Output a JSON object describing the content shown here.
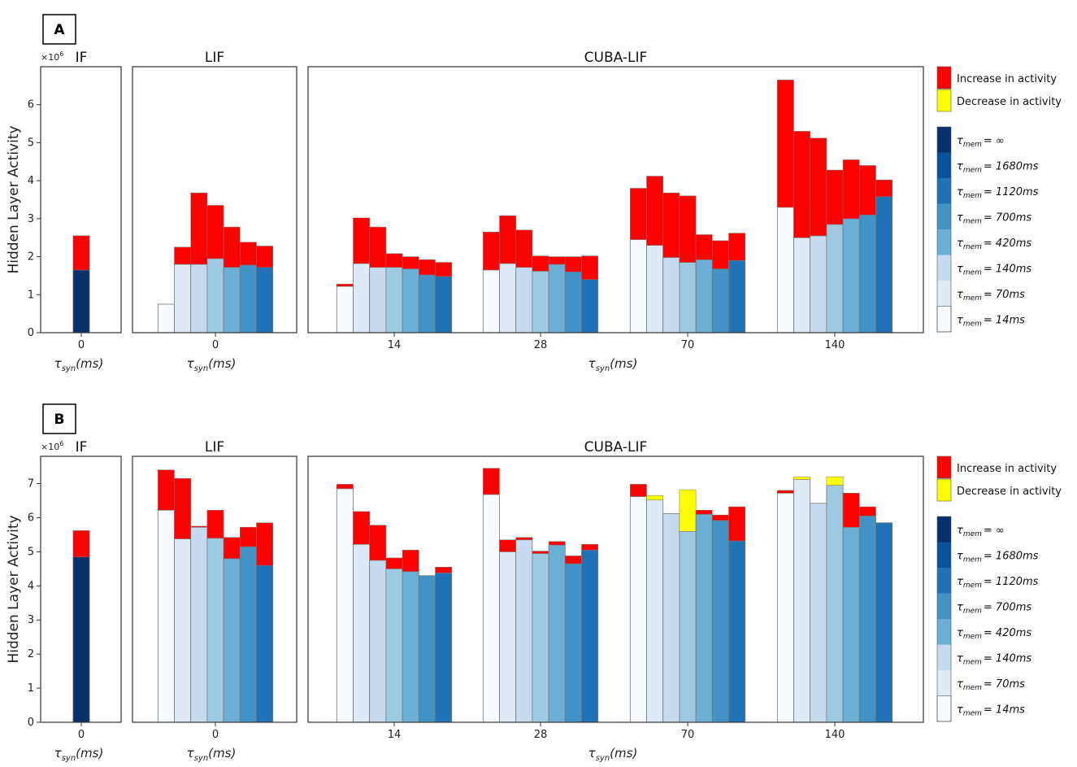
{
  "chart_data": [
    {
      "panel": "A",
      "type": "bar",
      "subtype": "stacked-change",
      "ylabel": "Hidden Layer Activity",
      "y_scale_label": "×10",
      "y_scale_exponent": "6",
      "ylim": [
        0,
        7
      ],
      "yticks": [
        0,
        1,
        2,
        3,
        4,
        5,
        6
      ],
      "xlabel": "τsyn(ms)",
      "subplots": [
        {
          "title": "IF",
          "groups": [
            {
              "tick": "0",
              "bars": [
                {
                  "tau_mem_index": 7,
                  "base": 1.65,
                  "top": 2.55,
                  "change": "increase"
                }
              ]
            }
          ]
        },
        {
          "title": "LIF",
          "groups": [
            {
              "tick": "0",
              "bars": [
                {
                  "tau_mem_index": 0,
                  "base": 0.75,
                  "top": 0.75,
                  "change": "none"
                },
                {
                  "tau_mem_index": 1,
                  "base": 1.8,
                  "top": 2.25,
                  "change": "increase"
                },
                {
                  "tau_mem_index": 2,
                  "base": 1.8,
                  "top": 3.68,
                  "change": "increase"
                },
                {
                  "tau_mem_index": 3,
                  "base": 1.95,
                  "top": 3.35,
                  "change": "increase"
                },
                {
                  "tau_mem_index": 4,
                  "base": 1.72,
                  "top": 2.78,
                  "change": "increase"
                },
                {
                  "tau_mem_index": 5,
                  "base": 1.78,
                  "top": 2.38,
                  "change": "increase"
                },
                {
                  "tau_mem_index": 6,
                  "base": 1.72,
                  "top": 2.28,
                  "change": "increase"
                }
              ]
            }
          ]
        },
        {
          "title": "CUBA-LIF",
          "groups": [
            {
              "tick": "14",
              "bars": [
                {
                  "tau_mem_index": 0,
                  "base": 1.22,
                  "top": 1.28,
                  "change": "increase"
                },
                {
                  "tau_mem_index": 1,
                  "base": 1.82,
                  "top": 3.02,
                  "change": "increase"
                },
                {
                  "tau_mem_index": 2,
                  "base": 1.72,
                  "top": 2.78,
                  "change": "increase"
                },
                {
                  "tau_mem_index": 3,
                  "base": 1.72,
                  "top": 2.08,
                  "change": "increase"
                },
                {
                  "tau_mem_index": 4,
                  "base": 1.68,
                  "top": 2.0,
                  "change": "increase"
                },
                {
                  "tau_mem_index": 5,
                  "base": 1.52,
                  "top": 1.92,
                  "change": "increase"
                },
                {
                  "tau_mem_index": 6,
                  "base": 1.48,
                  "top": 1.85,
                  "change": "increase"
                }
              ]
            },
            {
              "tick": "28",
              "bars": [
                {
                  "tau_mem_index": 0,
                  "base": 1.65,
                  "top": 2.65,
                  "change": "increase"
                },
                {
                  "tau_mem_index": 1,
                  "base": 1.82,
                  "top": 3.08,
                  "change": "increase"
                },
                {
                  "tau_mem_index": 2,
                  "base": 1.72,
                  "top": 2.7,
                  "change": "increase"
                },
                {
                  "tau_mem_index": 3,
                  "base": 1.62,
                  "top": 2.02,
                  "change": "increase"
                },
                {
                  "tau_mem_index": 4,
                  "base": 1.8,
                  "top": 2.0,
                  "change": "increase"
                },
                {
                  "tau_mem_index": 5,
                  "base": 1.6,
                  "top": 2.0,
                  "change": "increase"
                },
                {
                  "tau_mem_index": 6,
                  "base": 1.4,
                  "top": 2.02,
                  "change": "increase"
                }
              ]
            },
            {
              "tick": "70",
              "bars": [
                {
                  "tau_mem_index": 0,
                  "base": 2.45,
                  "top": 3.8,
                  "change": "increase"
                },
                {
                  "tau_mem_index": 1,
                  "base": 2.3,
                  "top": 4.12,
                  "change": "increase"
                },
                {
                  "tau_mem_index": 2,
                  "base": 1.98,
                  "top": 3.68,
                  "change": "increase"
                },
                {
                  "tau_mem_index": 3,
                  "base": 1.85,
                  "top": 3.6,
                  "change": "increase"
                },
                {
                  "tau_mem_index": 4,
                  "base": 1.92,
                  "top": 2.58,
                  "change": "increase"
                },
                {
                  "tau_mem_index": 5,
                  "base": 1.68,
                  "top": 2.42,
                  "change": "increase"
                },
                {
                  "tau_mem_index": 6,
                  "base": 1.9,
                  "top": 2.62,
                  "change": "increase"
                }
              ]
            },
            {
              "tick": "140",
              "bars": [
                {
                  "tau_mem_index": 0,
                  "base": 3.3,
                  "top": 6.65,
                  "change": "increase"
                },
                {
                  "tau_mem_index": 1,
                  "base": 2.5,
                  "top": 5.3,
                  "change": "increase"
                },
                {
                  "tau_mem_index": 2,
                  "base": 2.55,
                  "top": 5.12,
                  "change": "increase"
                },
                {
                  "tau_mem_index": 3,
                  "base": 2.85,
                  "top": 4.28,
                  "change": "increase"
                },
                {
                  "tau_mem_index": 4,
                  "base": 3.0,
                  "top": 4.55,
                  "change": "increase"
                },
                {
                  "tau_mem_index": 5,
                  "base": 3.1,
                  "top": 4.4,
                  "change": "increase"
                },
                {
                  "tau_mem_index": 6,
                  "base": 3.58,
                  "top": 4.02,
                  "change": "increase"
                }
              ]
            }
          ]
        }
      ]
    },
    {
      "panel": "B",
      "type": "bar",
      "subtype": "stacked-change",
      "ylabel": "Hidden Layer Activity",
      "y_scale_label": "×10",
      "y_scale_exponent": "6",
      "ylim": [
        0,
        7.8
      ],
      "yticks": [
        0,
        1,
        2,
        3,
        4,
        5,
        6,
        7
      ],
      "xlabel": "τsyn(ms)",
      "subplots": [
        {
          "title": "IF",
          "groups": [
            {
              "tick": "0",
              "bars": [
                {
                  "tau_mem_index": 7,
                  "base": 4.85,
                  "top": 5.62,
                  "change": "increase"
                }
              ]
            }
          ]
        },
        {
          "title": "LIF",
          "groups": [
            {
              "tick": "0",
              "bars": [
                {
                  "tau_mem_index": 0,
                  "base": 6.22,
                  "top": 7.4,
                  "change": "increase"
                },
                {
                  "tau_mem_index": 1,
                  "base": 5.38,
                  "top": 7.15,
                  "change": "increase"
                },
                {
                  "tau_mem_index": 2,
                  "base": 5.72,
                  "top": 5.75,
                  "change": "increase"
                },
                {
                  "tau_mem_index": 3,
                  "base": 5.4,
                  "top": 6.22,
                  "change": "increase"
                },
                {
                  "tau_mem_index": 4,
                  "base": 4.8,
                  "top": 5.42,
                  "change": "increase"
                },
                {
                  "tau_mem_index": 5,
                  "base": 5.15,
                  "top": 5.72,
                  "change": "increase"
                },
                {
                  "tau_mem_index": 6,
                  "base": 4.6,
                  "top": 5.85,
                  "change": "increase"
                }
              ]
            }
          ]
        },
        {
          "title": "CUBA-LIF",
          "groups": [
            {
              "tick": "14",
              "bars": [
                {
                  "tau_mem_index": 0,
                  "base": 6.85,
                  "top": 6.98,
                  "change": "increase"
                },
                {
                  "tau_mem_index": 1,
                  "base": 5.22,
                  "top": 6.18,
                  "change": "increase"
                },
                {
                  "tau_mem_index": 2,
                  "base": 4.75,
                  "top": 5.78,
                  "change": "increase"
                },
                {
                  "tau_mem_index": 3,
                  "base": 4.5,
                  "top": 4.82,
                  "change": "increase"
                },
                {
                  "tau_mem_index": 4,
                  "base": 4.42,
                  "top": 5.05,
                  "change": "increase"
                },
                {
                  "tau_mem_index": 5,
                  "base": 4.3,
                  "top": 4.3,
                  "change": "none"
                },
                {
                  "tau_mem_index": 6,
                  "base": 4.38,
                  "top": 4.55,
                  "change": "increase"
                }
              ]
            },
            {
              "tick": "28",
              "bars": [
                {
                  "tau_mem_index": 0,
                  "base": 6.68,
                  "top": 7.45,
                  "change": "increase"
                },
                {
                  "tau_mem_index": 1,
                  "base": 5.0,
                  "top": 5.35,
                  "change": "increase"
                },
                {
                  "tau_mem_index": 2,
                  "base": 5.35,
                  "top": 5.42,
                  "change": "increase"
                },
                {
                  "tau_mem_index": 3,
                  "base": 4.95,
                  "top": 5.02,
                  "change": "increase"
                },
                {
                  "tau_mem_index": 4,
                  "base": 5.2,
                  "top": 5.3,
                  "change": "increase"
                },
                {
                  "tau_mem_index": 5,
                  "base": 4.65,
                  "top": 4.88,
                  "change": "increase"
                },
                {
                  "tau_mem_index": 6,
                  "base": 5.05,
                  "top": 5.22,
                  "change": "increase"
                }
              ]
            },
            {
              "tick": "70",
              "bars": [
                {
                  "tau_mem_index": 0,
                  "base": 6.62,
                  "top": 6.98,
                  "change": "increase"
                },
                {
                  "tau_mem_index": 1,
                  "base": 6.52,
                  "top": 6.65,
                  "change": "decrease"
                },
                {
                  "tau_mem_index": 2,
                  "base": 6.12,
                  "top": 6.12,
                  "change": "none"
                },
                {
                  "tau_mem_index": 3,
                  "base": 5.6,
                  "top": 6.82,
                  "change": "decrease"
                },
                {
                  "tau_mem_index": 4,
                  "base": 6.1,
                  "top": 6.22,
                  "change": "increase"
                },
                {
                  "tau_mem_index": 5,
                  "base": 5.92,
                  "top": 6.08,
                  "change": "increase"
                },
                {
                  "tau_mem_index": 6,
                  "base": 5.32,
                  "top": 6.32,
                  "change": "increase"
                }
              ]
            },
            {
              "tick": "140",
              "bars": [
                {
                  "tau_mem_index": 0,
                  "base": 6.72,
                  "top": 6.8,
                  "change": "increase"
                },
                {
                  "tau_mem_index": 1,
                  "base": 7.12,
                  "top": 7.2,
                  "change": "decrease"
                },
                {
                  "tau_mem_index": 2,
                  "base": 6.42,
                  "top": 6.42,
                  "change": "none"
                },
                {
                  "tau_mem_index": 3,
                  "base": 6.95,
                  "top": 7.2,
                  "change": "decrease"
                },
                {
                  "tau_mem_index": 4,
                  "base": 5.72,
                  "top": 6.72,
                  "change": "increase"
                },
                {
                  "tau_mem_index": 5,
                  "base": 6.05,
                  "top": 6.32,
                  "change": "increase"
                },
                {
                  "tau_mem_index": 6,
                  "base": 5.85,
                  "top": 5.85,
                  "change": "none"
                }
              ]
            }
          ]
        }
      ]
    }
  ],
  "legend": {
    "change": [
      {
        "label": "Increase in activity",
        "color": "#ff0000"
      },
      {
        "label": "Decrease in activity",
        "color": "#ffff00"
      }
    ],
    "tau_prefix": "τ",
    "tau_sub": "mem",
    "tau_mem": [
      {
        "value": "= ∞",
        "color": "#08306b"
      },
      {
        "value": "= 1680ms",
        "color": "#08519c"
      },
      {
        "value": "= 1120ms",
        "color": "#2171b5"
      },
      {
        "value": "= 700ms",
        "color": "#4292c6"
      },
      {
        "value": "= 420ms",
        "color": "#6baed6"
      },
      {
        "value": "= 140ms",
        "color": "#c6dbef"
      },
      {
        "value": "= 70ms",
        "color": "#deebf7"
      },
      {
        "value": "= 14ms",
        "color": "#f7fbff"
      }
    ]
  },
  "colors": {
    "bar_palette": [
      "#f7fbff",
      "#deebf7",
      "#c6dbef",
      "#9ecae1",
      "#6baed6",
      "#4292c6",
      "#2171b5",
      "#08306b"
    ],
    "increase": "#ff0000",
    "decrease": "#ffff00",
    "frame": "#333333"
  },
  "xlabel_parts": {
    "main": "τ",
    "sub": "syn",
    "unit": "(ms)"
  }
}
